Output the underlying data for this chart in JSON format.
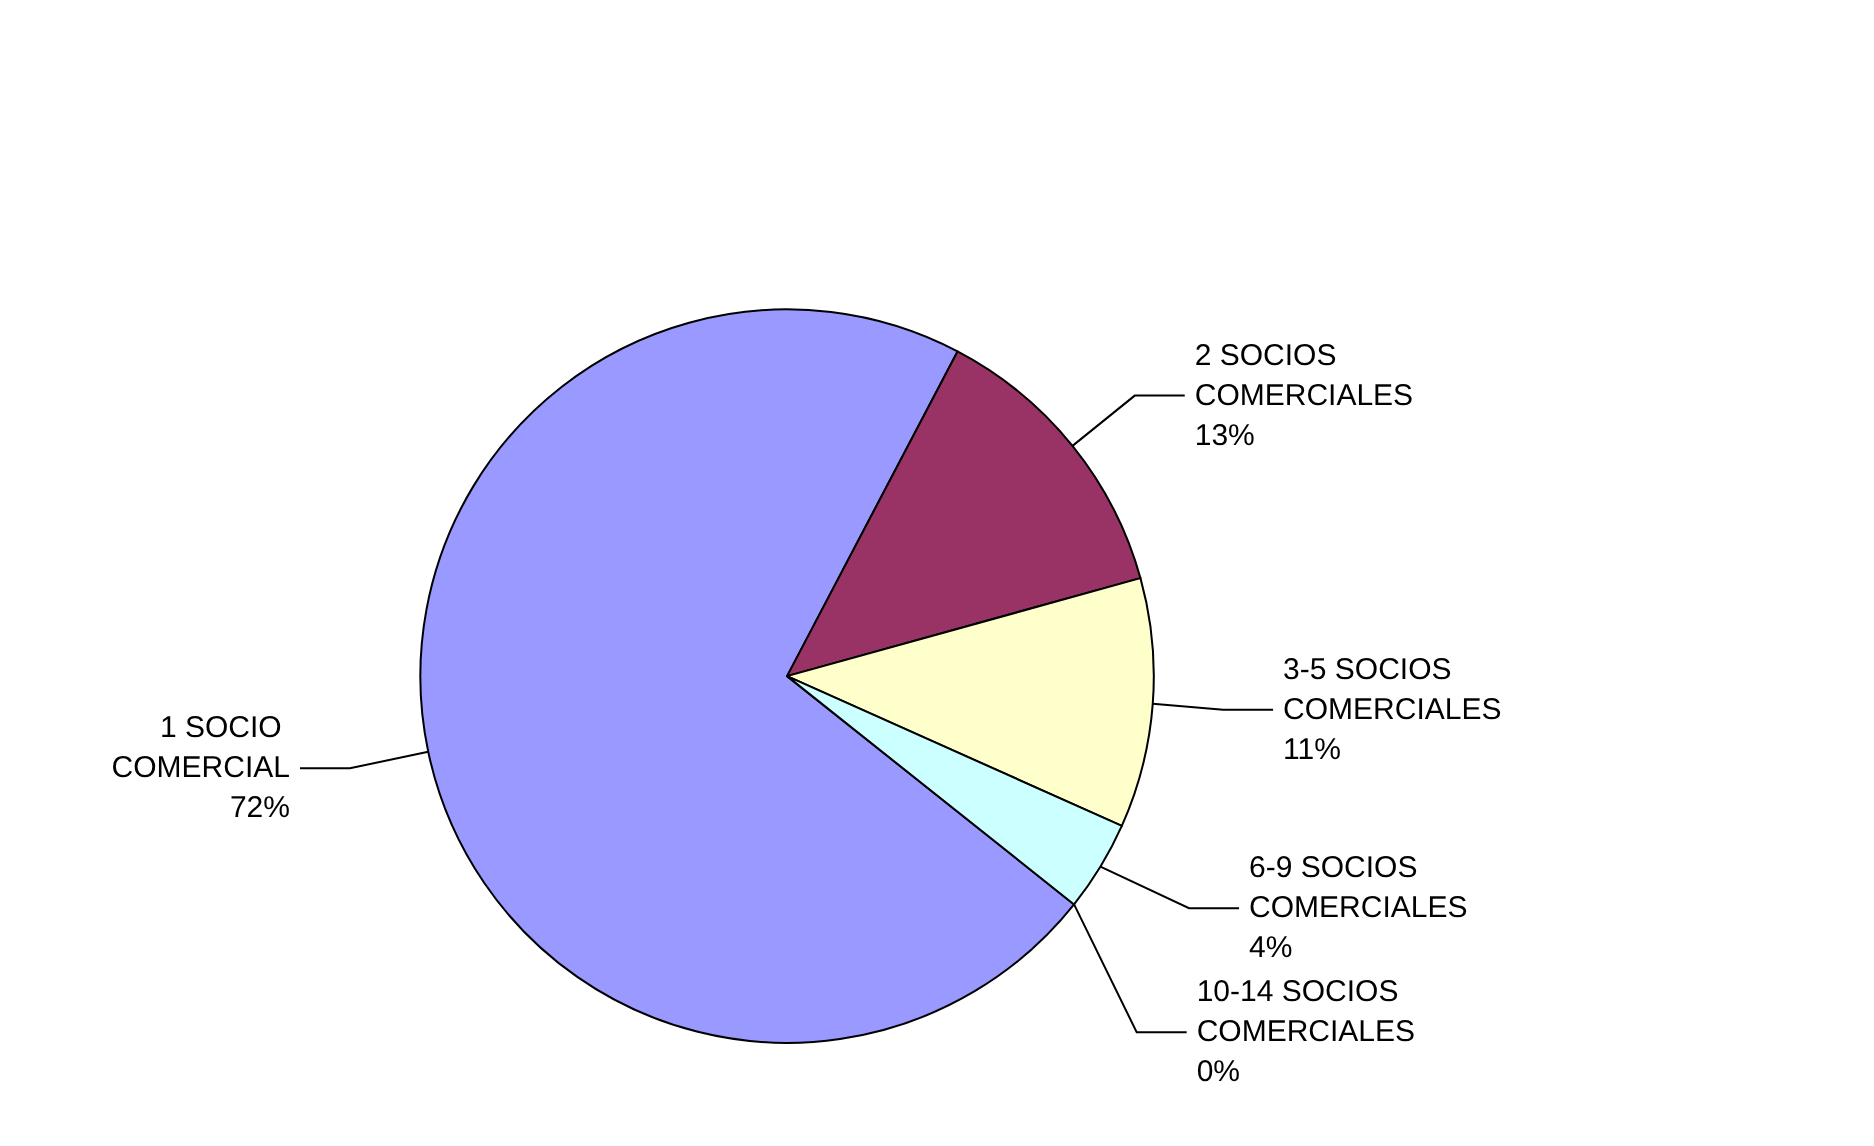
{
  "chart_data": {
    "type": "pie",
    "categories": [
      "1 SOCIO COMERCIAL",
      "2 SOCIOS COMERCIALES",
      "3-5 SOCIOS COMERCIALES",
      "6-9 SOCIOS COMERCIALES",
      "10-14 SOCIOS COMERCIALES"
    ],
    "values": [
      72,
      13,
      11,
      4,
      0
    ],
    "colors": [
      "#9999ff",
      "#993366",
      "#ffffcc",
      "#ccffff",
      "#660066"
    ],
    "value_labels": [
      "72%",
      "13%",
      "11%",
      "4%",
      "0%"
    ],
    "legend": false
  }
}
